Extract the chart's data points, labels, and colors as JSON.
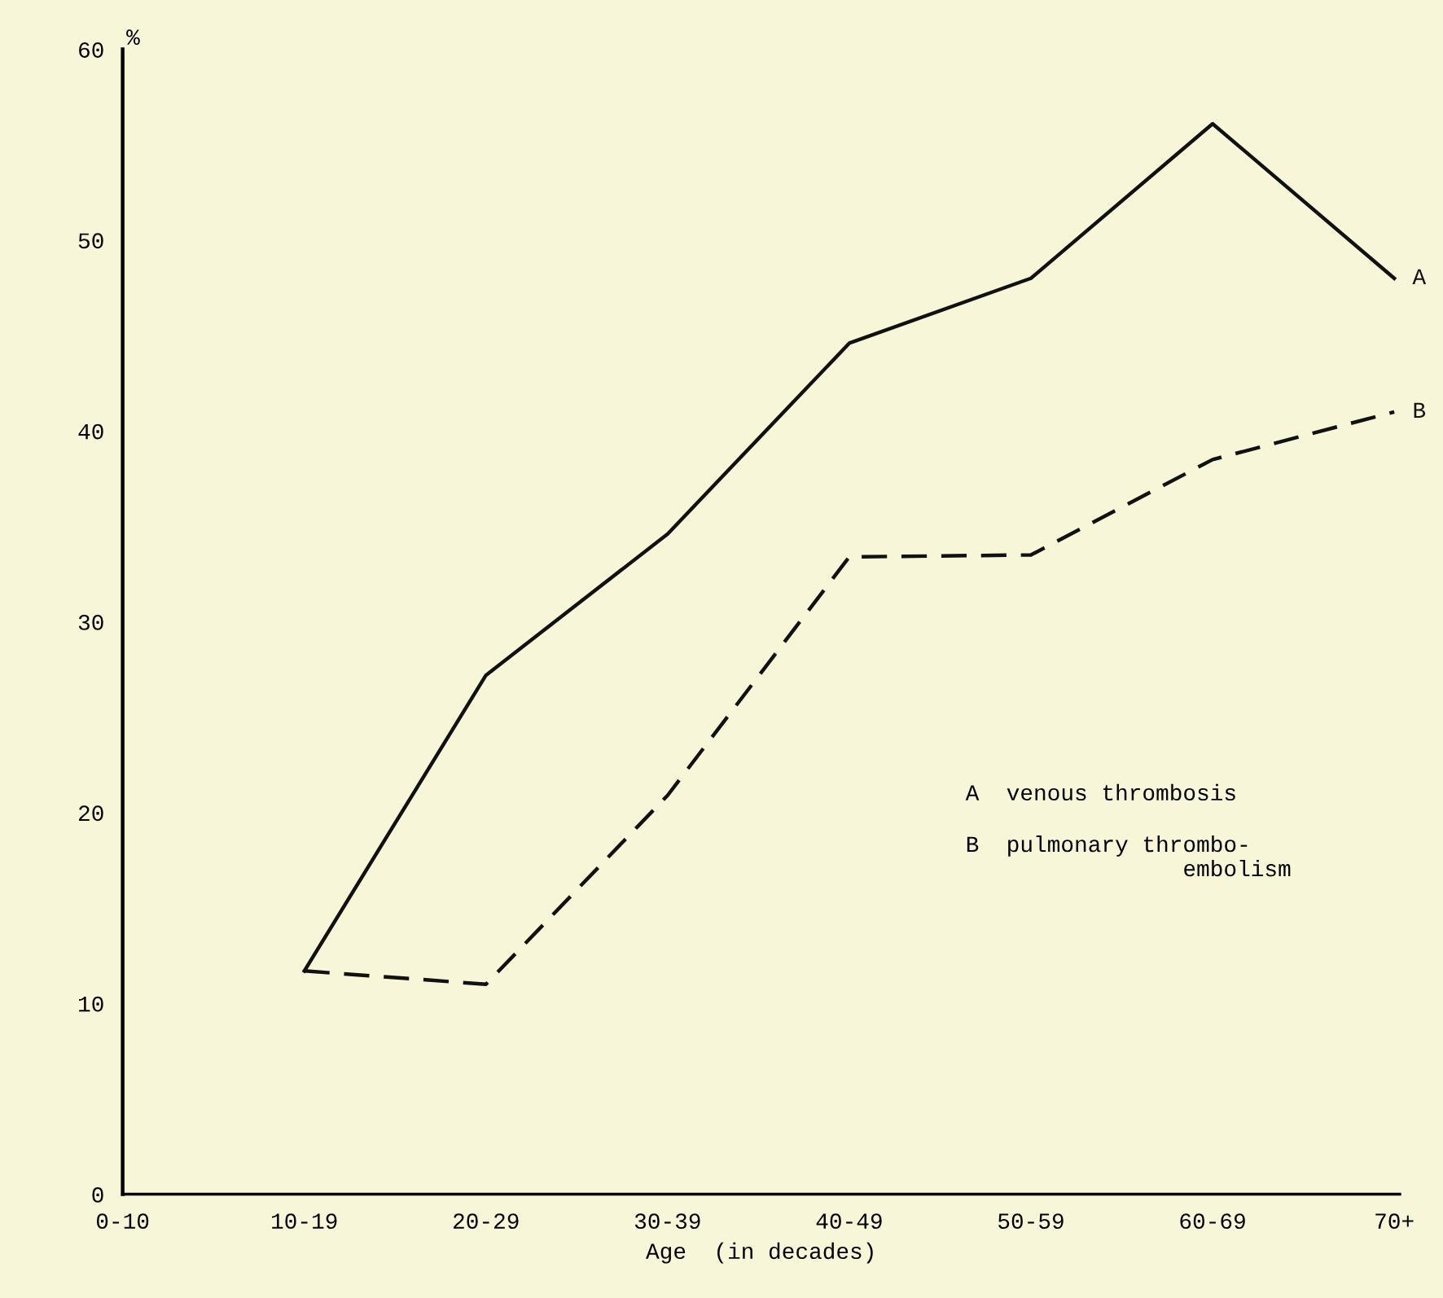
{
  "chart_data": {
    "type": "line",
    "categories": [
      "0-10",
      "10-19",
      "20-29",
      "30-39",
      "40-49",
      "50-59",
      "60-69",
      "70+"
    ],
    "series": [
      {
        "name": "A",
        "color": "#111111",
        "line_style": "solid",
        "values": [
          null,
          11.7,
          27.2,
          34.6,
          44.6,
          48.0,
          56.1,
          48.0
        ]
      },
      {
        "name": "B",
        "color": "#111111",
        "line_style": "dashed",
        "values": [
          null,
          11.7,
          11.0,
          20.9,
          33.4,
          33.5,
          38.5,
          41.0
        ]
      }
    ],
    "ylabel": "%",
    "xlabel": "Age  (in decades)",
    "ylim": [
      0,
      60
    ],
    "yticks": [
      0,
      10,
      20,
      30,
      40,
      50,
      60
    ],
    "grid": false,
    "legend": false,
    "marker": "none",
    "annotations": [
      "A  venous thrombosis",
      "B  pulmonary thrombo-\n                embolism"
    ]
  }
}
